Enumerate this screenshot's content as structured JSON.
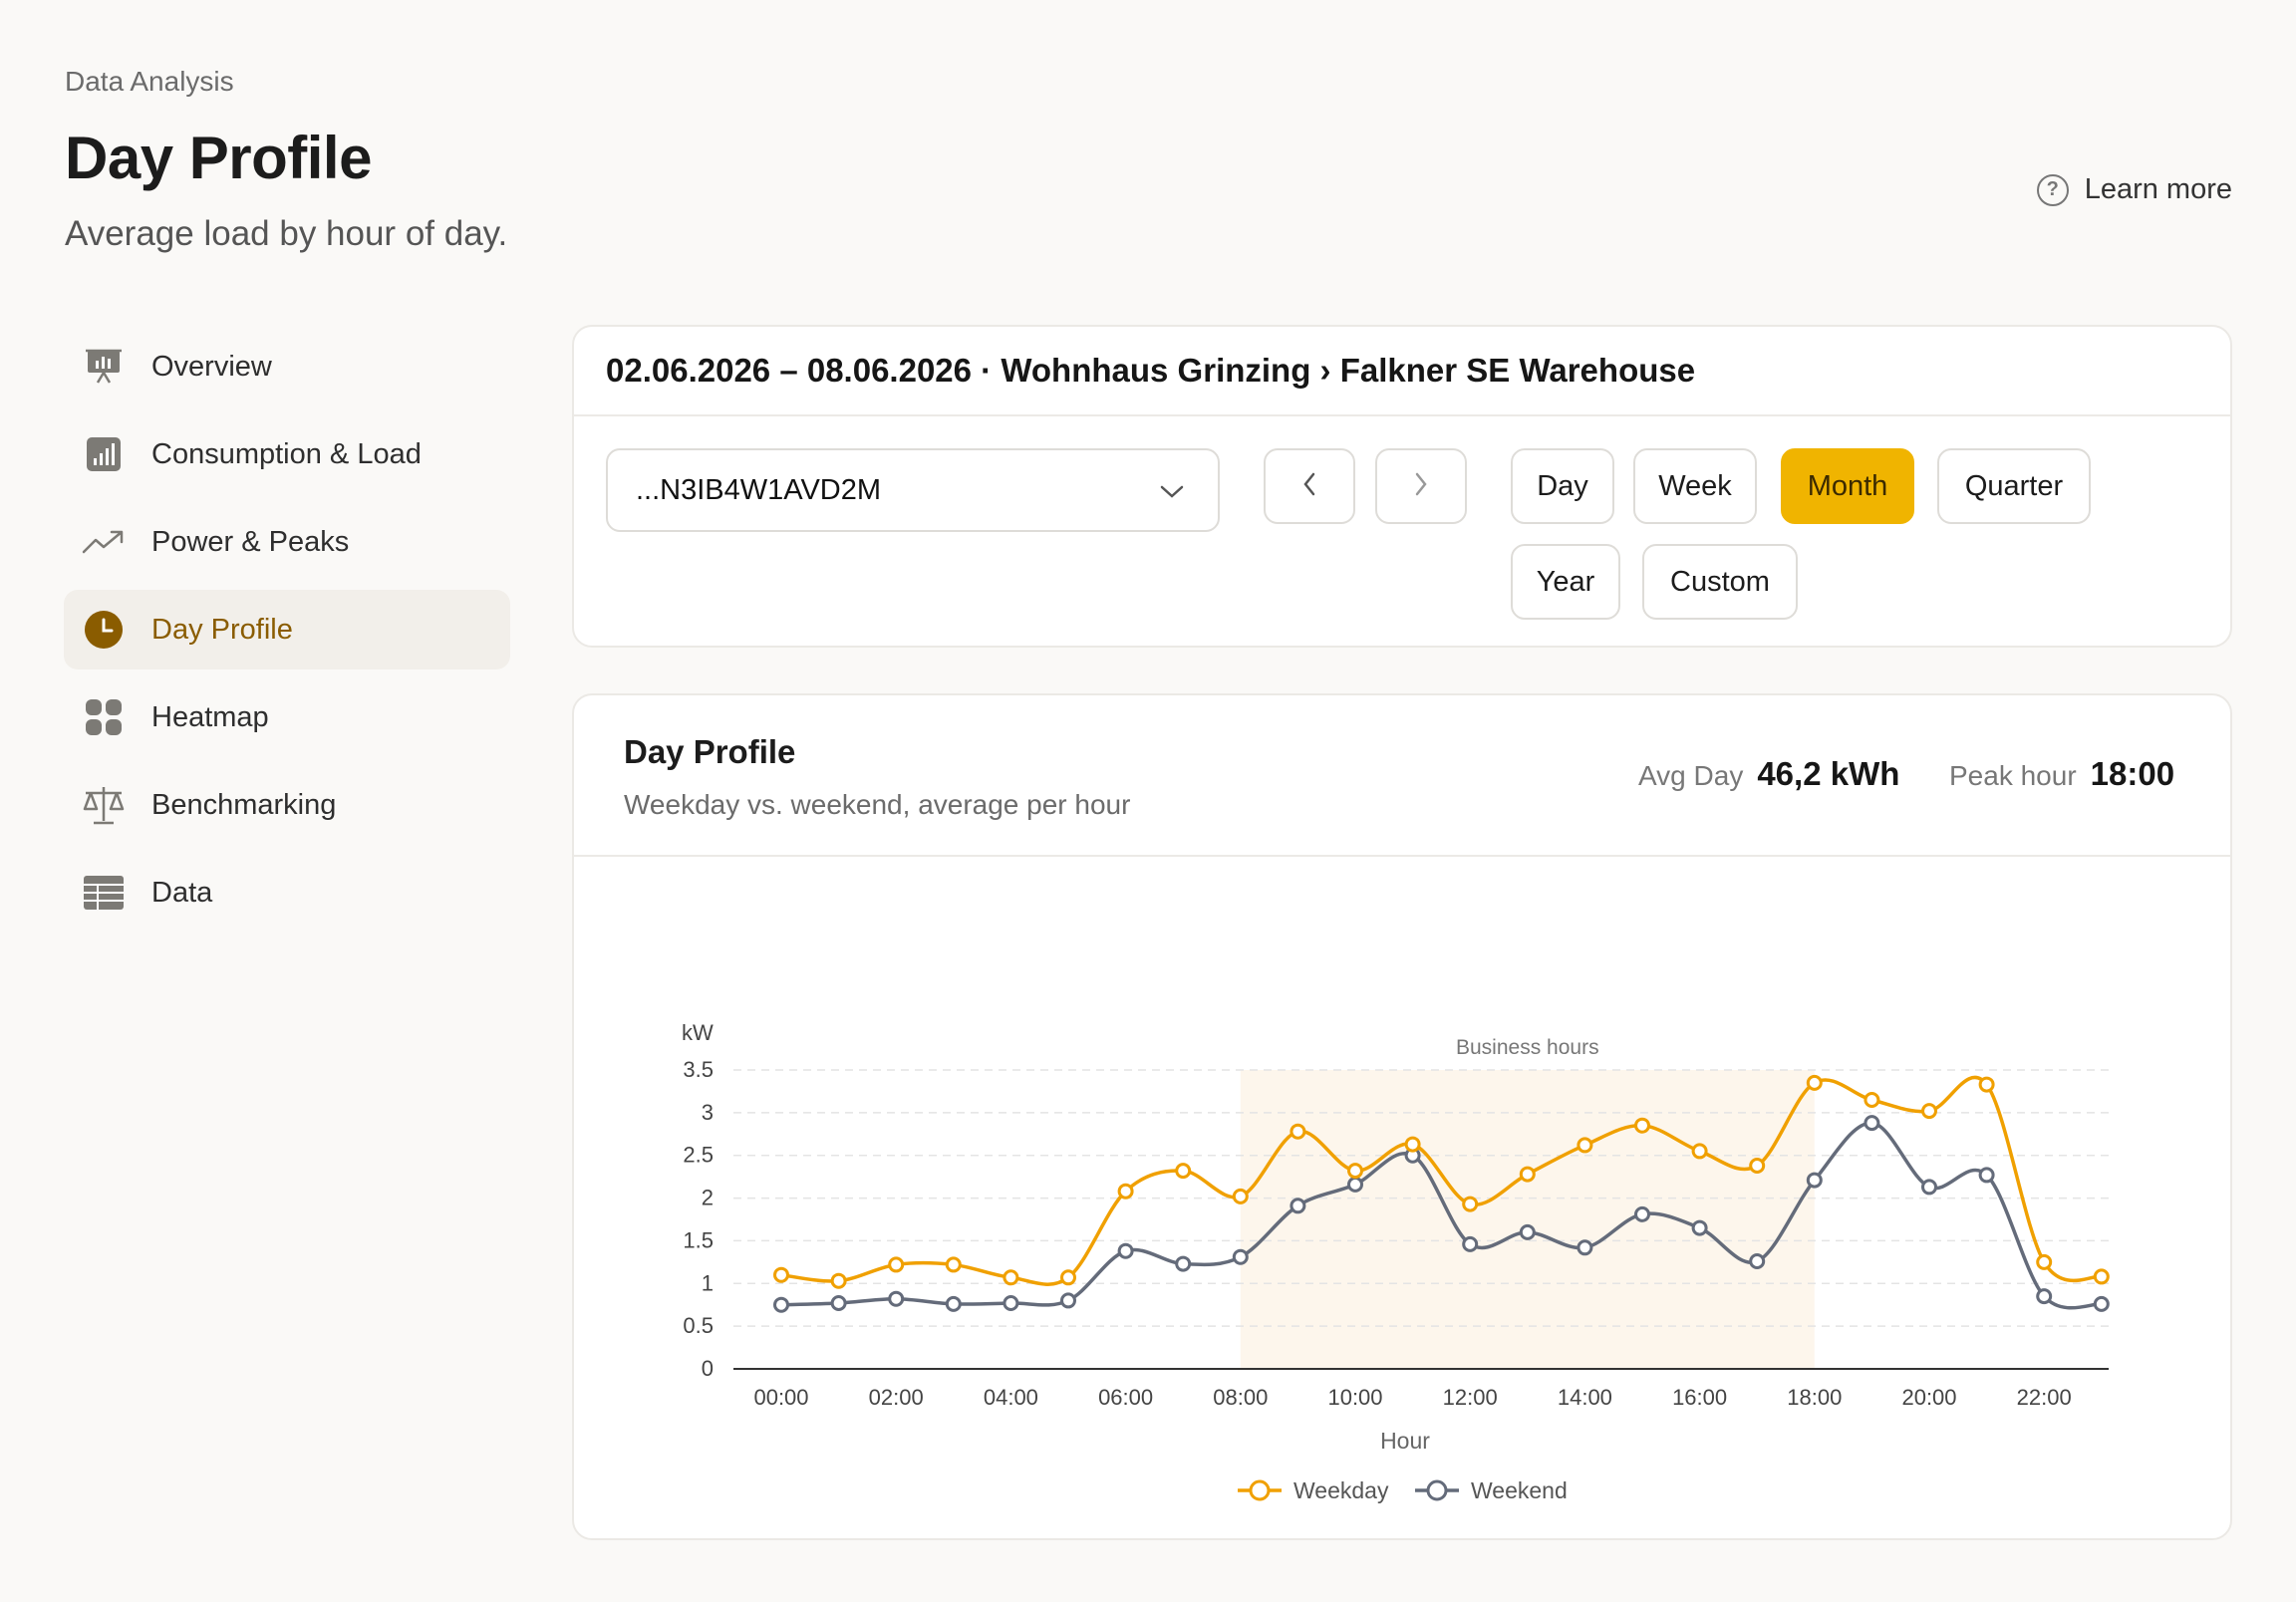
{
  "header": {
    "breadcrumb": "Data Analysis",
    "title": "Day Profile",
    "subtitle": "Average load by hour of day.",
    "learn_more": "Learn more"
  },
  "sidebar": {
    "items": [
      {
        "label": "Overview",
        "icon": "presentation-chart-icon",
        "active": false
      },
      {
        "label": "Consumption & Load",
        "icon": "bar-chart-icon",
        "active": false
      },
      {
        "label": "Power & Peaks",
        "icon": "trending-up-icon",
        "active": false
      },
      {
        "label": "Day Profile",
        "icon": "clock-icon",
        "active": true
      },
      {
        "label": "Heatmap",
        "icon": "grid-icon",
        "active": false
      },
      {
        "label": "Benchmarking",
        "icon": "scale-icon",
        "active": false
      },
      {
        "label": "Data",
        "icon": "table-icon",
        "active": false
      }
    ]
  },
  "filter": {
    "title": "02.06.2026 – 08.06.2026 · Wohnhaus Grinzing › Falkner SE Warehouse",
    "meter_value": "...N3IB4W1AVD2M",
    "periods": [
      "Day",
      "Week",
      "Month",
      "Quarter",
      "Year",
      "Custom"
    ],
    "active_period": "Month"
  },
  "chart_card": {
    "title": "Day Profile",
    "subtitle": "Weekday vs. weekend, average per hour",
    "kpis": {
      "avg_day_label": "Avg Day",
      "avg_day_value": "46,2 kWh",
      "peak_hour_label": "Peak hour",
      "peak_hour_value": "18:00"
    }
  },
  "colors": {
    "accent": "#f0b400",
    "weekday": "#f0a000",
    "weekend": "#646b7a",
    "business_band": "#fdf6ec"
  },
  "chart_data": {
    "type": "line",
    "ylabel": "kW",
    "xlabel": "Hour",
    "ylim": [
      0,
      3.5
    ],
    "yticks": [
      0,
      0.5,
      1,
      1.5,
      2,
      2.5,
      3,
      3.5
    ],
    "x": [
      "00:00",
      "01:00",
      "02:00",
      "03:00",
      "04:00",
      "05:00",
      "06:00",
      "07:00",
      "08:00",
      "09:00",
      "10:00",
      "11:00",
      "12:00",
      "13:00",
      "14:00",
      "15:00",
      "16:00",
      "17:00",
      "18:00",
      "19:00",
      "20:00",
      "21:00",
      "22:00",
      "23:00"
    ],
    "xtick_labels": [
      "00:00",
      "02:00",
      "04:00",
      "06:00",
      "08:00",
      "10:00",
      "12:00",
      "14:00",
      "16:00",
      "18:00",
      "20:00",
      "22:00"
    ],
    "annotation": {
      "label": "Business hours",
      "from": 8,
      "to": 18
    },
    "grid": "horizontal dashed",
    "legend": "bottom-center",
    "series": [
      {
        "name": "Weekday",
        "values": [
          1.1,
          1.03,
          1.22,
          1.22,
          1.07,
          1.07,
          2.08,
          2.32,
          2.02,
          2.78,
          2.32,
          2.63,
          1.93,
          2.28,
          2.62,
          2.85,
          2.55,
          2.38,
          3.35,
          3.15,
          3.02,
          3.33,
          1.25,
          1.08
        ]
      },
      {
        "name": "Weekend",
        "values": [
          0.75,
          0.77,
          0.82,
          0.76,
          0.77,
          0.8,
          1.38,
          1.23,
          1.31,
          1.91,
          2.16,
          2.5,
          1.46,
          1.6,
          1.42,
          1.81,
          1.65,
          1.26,
          2.21,
          2.88,
          2.13,
          2.27,
          0.85,
          0.76
        ]
      }
    ]
  }
}
